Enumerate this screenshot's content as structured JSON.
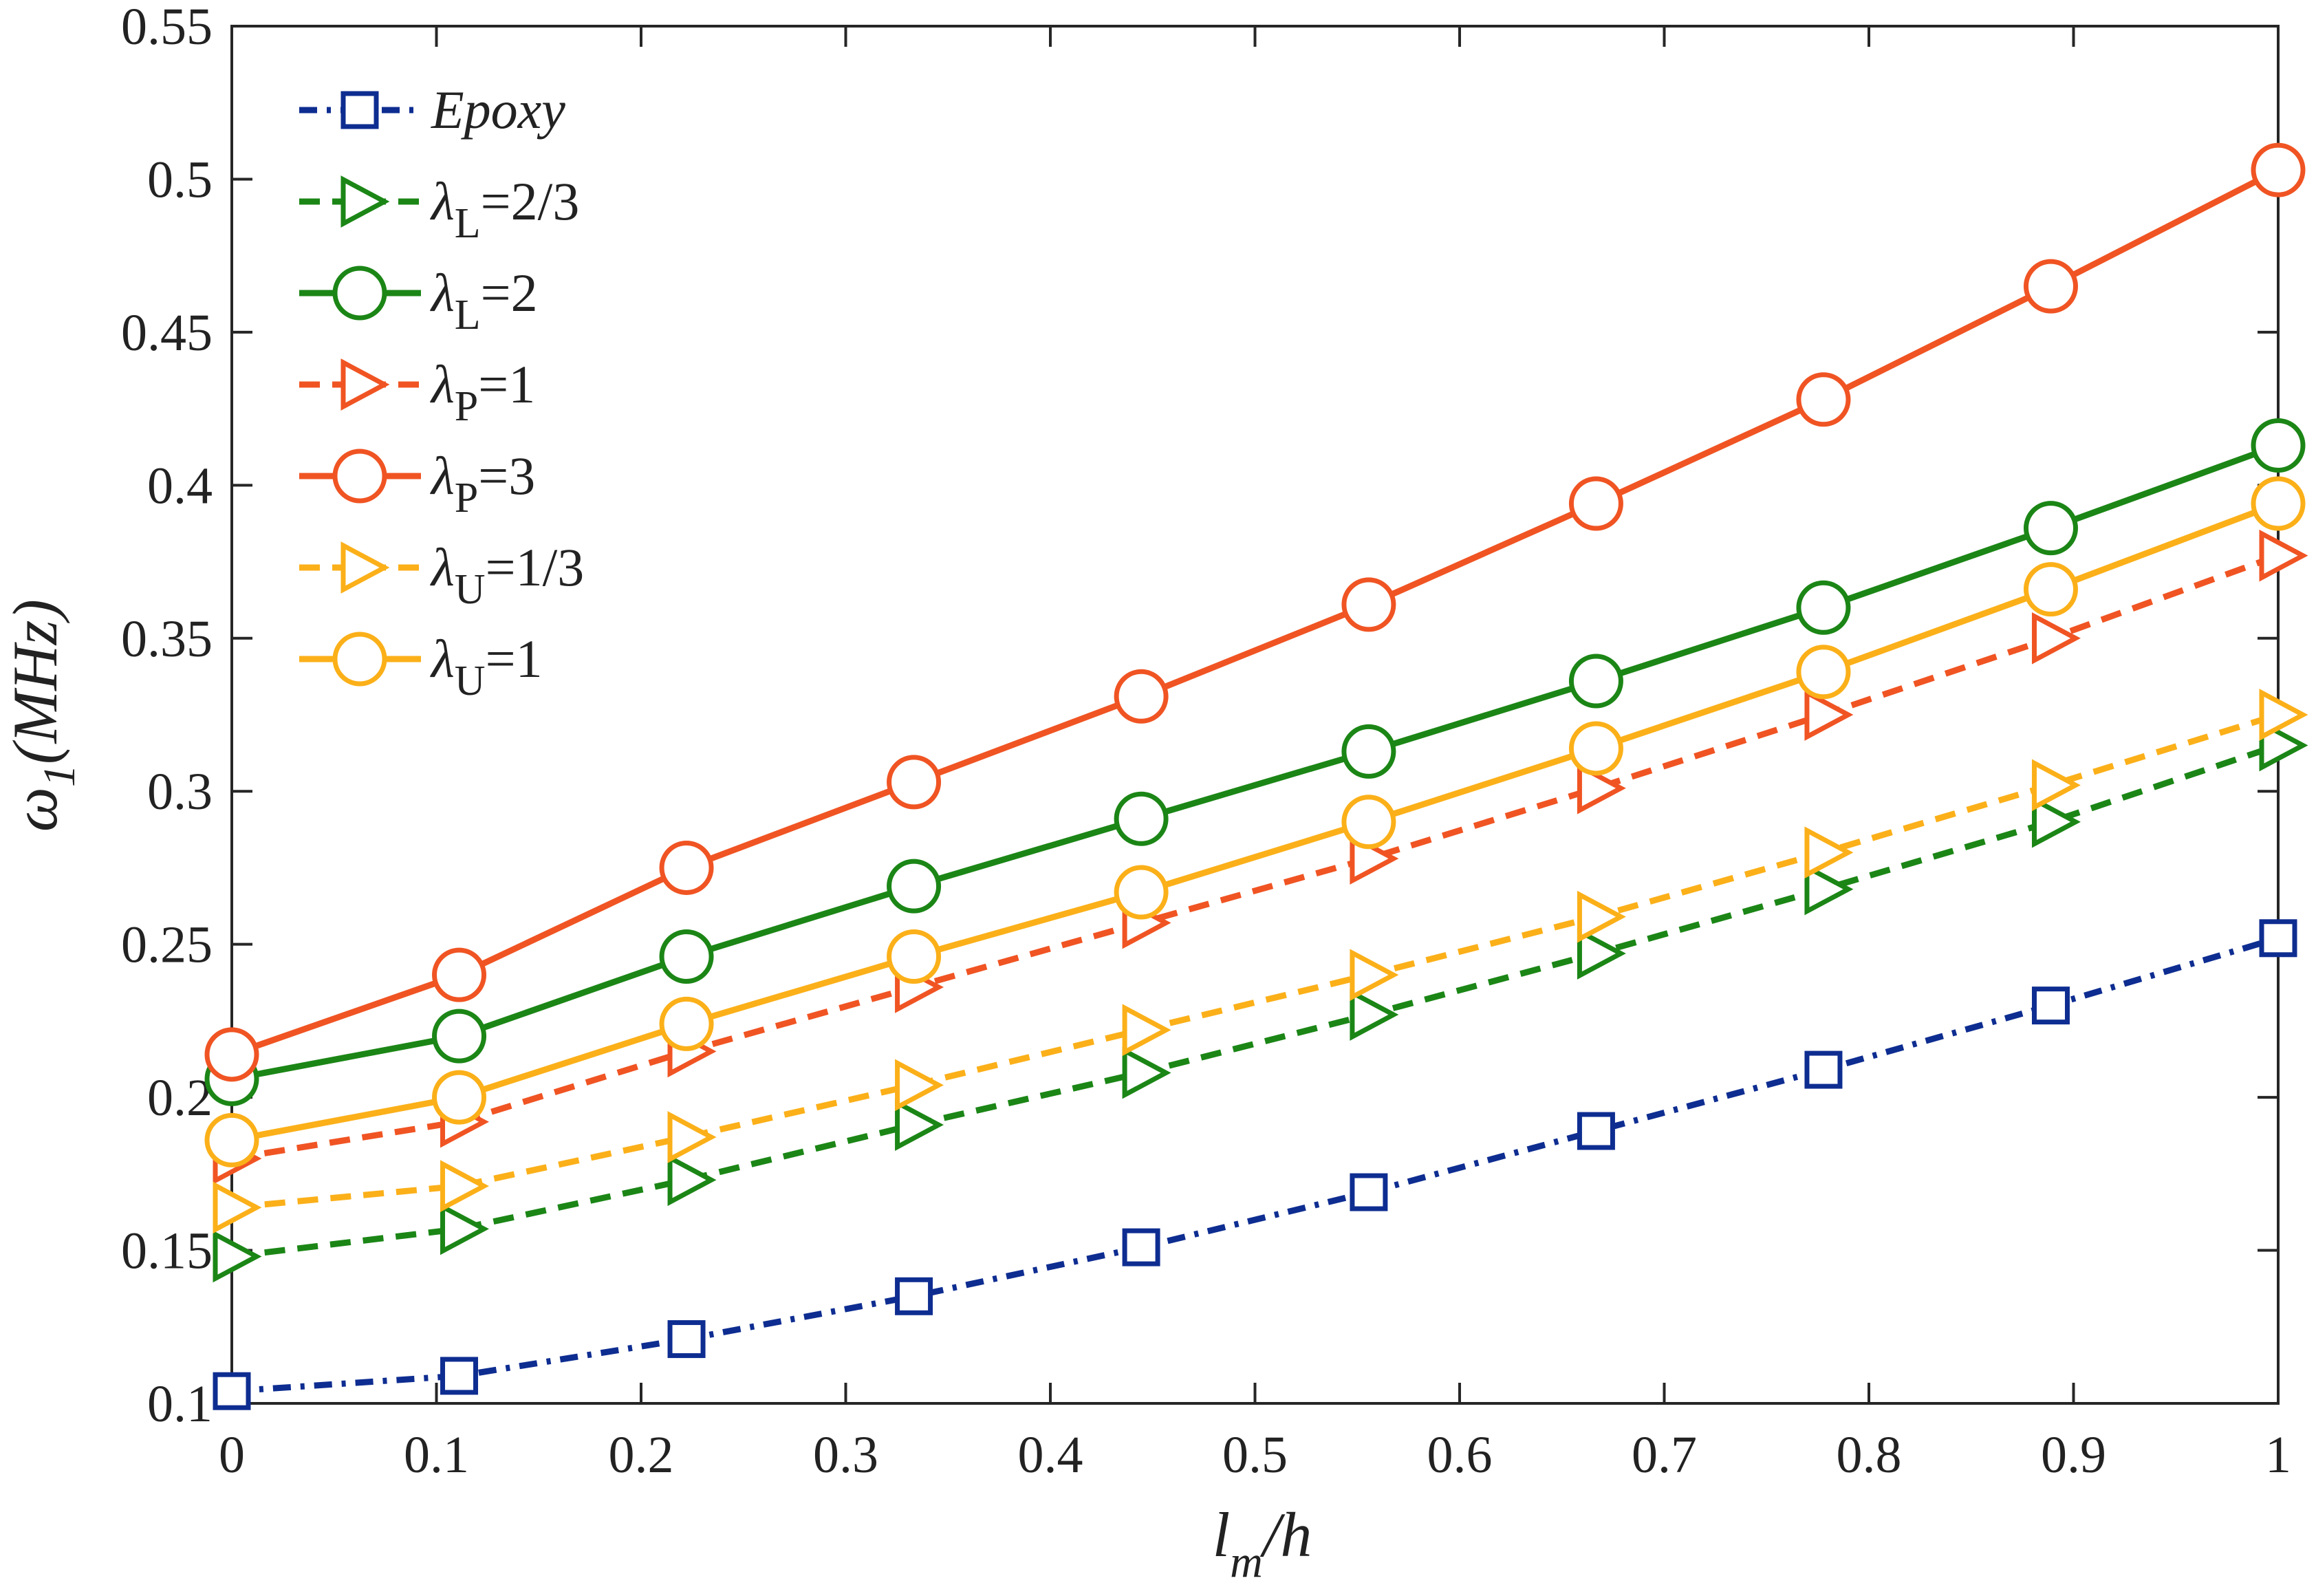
{
  "chart_data": {
    "type": "line",
    "title": "",
    "xlabel_main": "l",
    "xlabel_sub": "m",
    "xlabel_rest": "/h",
    "ylabel_main": "ω",
    "ylabel_sub": "1",
    "ylabel_rest": "(MHz)",
    "xlim": [
      0,
      1
    ],
    "ylim": [
      0.1,
      0.55
    ],
    "grid": false,
    "legend_position": "top-left",
    "x_ticks": [
      0,
      0.1,
      0.2,
      0.3,
      0.4,
      0.5,
      0.6,
      0.7,
      0.8,
      0.9,
      1
    ],
    "x_tick_labels": [
      "0",
      "0.1",
      "0.2",
      "0.3",
      "0.4",
      "0.5",
      "0.6",
      "0.7",
      "0.8",
      "0.9",
      "1"
    ],
    "y_ticks": [
      0.1,
      0.15,
      0.2,
      0.25,
      0.3,
      0.35,
      0.4,
      0.45,
      0.5,
      0.55
    ],
    "y_tick_labels": [
      "0.1",
      "0.15",
      "0.2",
      "0.25",
      "0.3",
      "0.35",
      "0.4",
      "0.45",
      "0.5",
      "0.55"
    ],
    "x": [
      0,
      0.1111,
      0.2222,
      0.3333,
      0.4444,
      0.5556,
      0.6667,
      0.7778,
      0.8889,
      1
    ],
    "series": [
      {
        "name": "Epoxy",
        "legend_label": {
          "main": "Epoxy",
          "sub": "",
          "rest": "",
          "italic": true
        },
        "color": "#0e2d91",
        "dash": "dashdot",
        "marker": "square",
        "values": [
          0.104,
          0.109,
          0.121,
          0.135,
          0.151,
          0.169,
          0.189,
          0.209,
          0.23,
          0.252
        ]
      },
      {
        "name": "λL=2/3",
        "legend_label": {
          "main": "λ",
          "sub": "L",
          "rest": "=2/3",
          "italic": false
        },
        "color": "#1b8616",
        "dash": "dashed",
        "marker": "triangle-right",
        "values": [
          0.148,
          0.157,
          0.173,
          0.191,
          0.208,
          0.227,
          0.247,
          0.268,
          0.29,
          0.315
        ]
      },
      {
        "name": "λL=2",
        "legend_label": {
          "main": "λ",
          "sub": "L",
          "rest": "=2",
          "italic": false
        },
        "color": "#1b8616",
        "dash": "solid",
        "marker": "circle",
        "values": [
          0.206,
          0.22,
          0.246,
          0.269,
          0.291,
          0.313,
          0.336,
          0.36,
          0.386,
          0.413
        ]
      },
      {
        "name": "λP=1",
        "legend_label": {
          "main": "λ",
          "sub": "P",
          "rest": "=1",
          "italic": false
        },
        "color": "#f05423",
        "dash": "dashed",
        "marker": "triangle-right",
        "values": [
          0.18,
          0.192,
          0.215,
          0.236,
          0.257,
          0.278,
          0.301,
          0.325,
          0.35,
          0.377
        ]
      },
      {
        "name": "λP=3",
        "legend_label": {
          "main": "λ",
          "sub": "P",
          "rest": "=3",
          "italic": false
        },
        "color": "#f05423",
        "dash": "solid",
        "marker": "circle",
        "values": [
          0.214,
          0.24,
          0.275,
          0.303,
          0.331,
          0.361,
          0.394,
          0.428,
          0.465,
          0.503
        ]
      },
      {
        "name": "λU=1/3",
        "legend_label": {
          "main": "λ",
          "sub": "U",
          "rest": "=1/3",
          "italic": false
        },
        "color": "#fbb019",
        "dash": "dashed",
        "marker": "triangle-right",
        "values": [
          0.164,
          0.171,
          0.187,
          0.204,
          0.222,
          0.24,
          0.259,
          0.28,
          0.302,
          0.325
        ]
      },
      {
        "name": "λU=1",
        "legend_label": {
          "main": "λ",
          "sub": "U",
          "rest": "=1",
          "italic": false
        },
        "color": "#fbb019",
        "dash": "solid",
        "marker": "circle",
        "values": [
          0.186,
          0.2,
          0.224,
          0.246,
          0.267,
          0.29,
          0.314,
          0.339,
          0.366,
          0.394
        ]
      }
    ]
  }
}
